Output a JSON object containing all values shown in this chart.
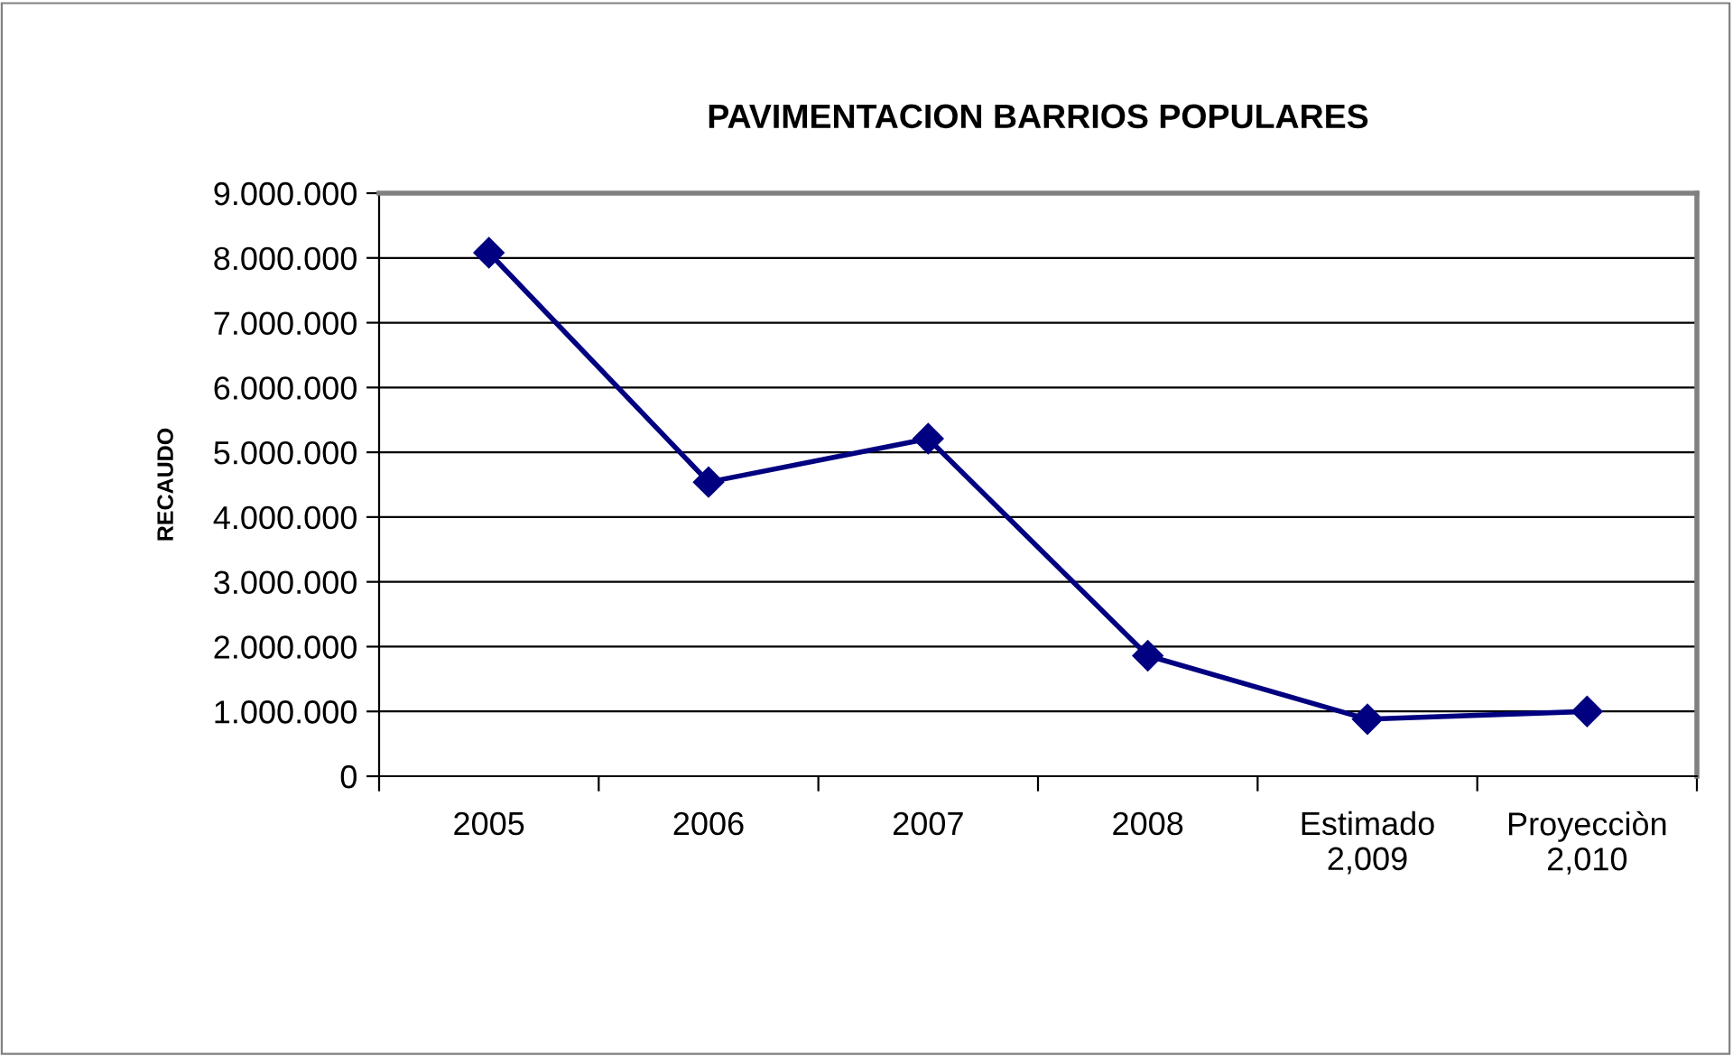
{
  "chart_data": {
    "type": "line",
    "title": "PAVIMENTACION BARRIOS POPULARES",
    "ylabel": "RECAUDO",
    "categories": [
      "2005",
      "2006",
      "2007",
      "2008",
      "Estimado\n2,009",
      "Proyecciòn\n2,010"
    ],
    "series": [
      {
        "color": "#000080",
        "values": [
          8080000,
          4540000,
          5210000,
          1860000,
          880000,
          1000000
        ]
      }
    ],
    "ylim": [
      0,
      9000000
    ],
    "yticks": [
      0,
      {
        "value": 1000000,
        "label": "1.000.000"
      },
      {
        "value": 2000000,
        "label": "2.000.000"
      },
      {
        "value": 3000000,
        "label": "3.000.000"
      },
      {
        "value": 4000000,
        "label": "4.000.000"
      },
      {
        "value": 5000000,
        "label": "5.000.000"
      },
      {
        "value": 6000000,
        "label": "6.000.000"
      },
      {
        "value": 7000000,
        "label": "7.000.000"
      },
      {
        "value": 8000000,
        "label": "8.000.000"
      },
      {
        "value": 9000000,
        "label": "9.000.000"
      }
    ],
    "grid": "y",
    "marker": "diamond",
    "line_style": "solid",
    "legend": false
  }
}
